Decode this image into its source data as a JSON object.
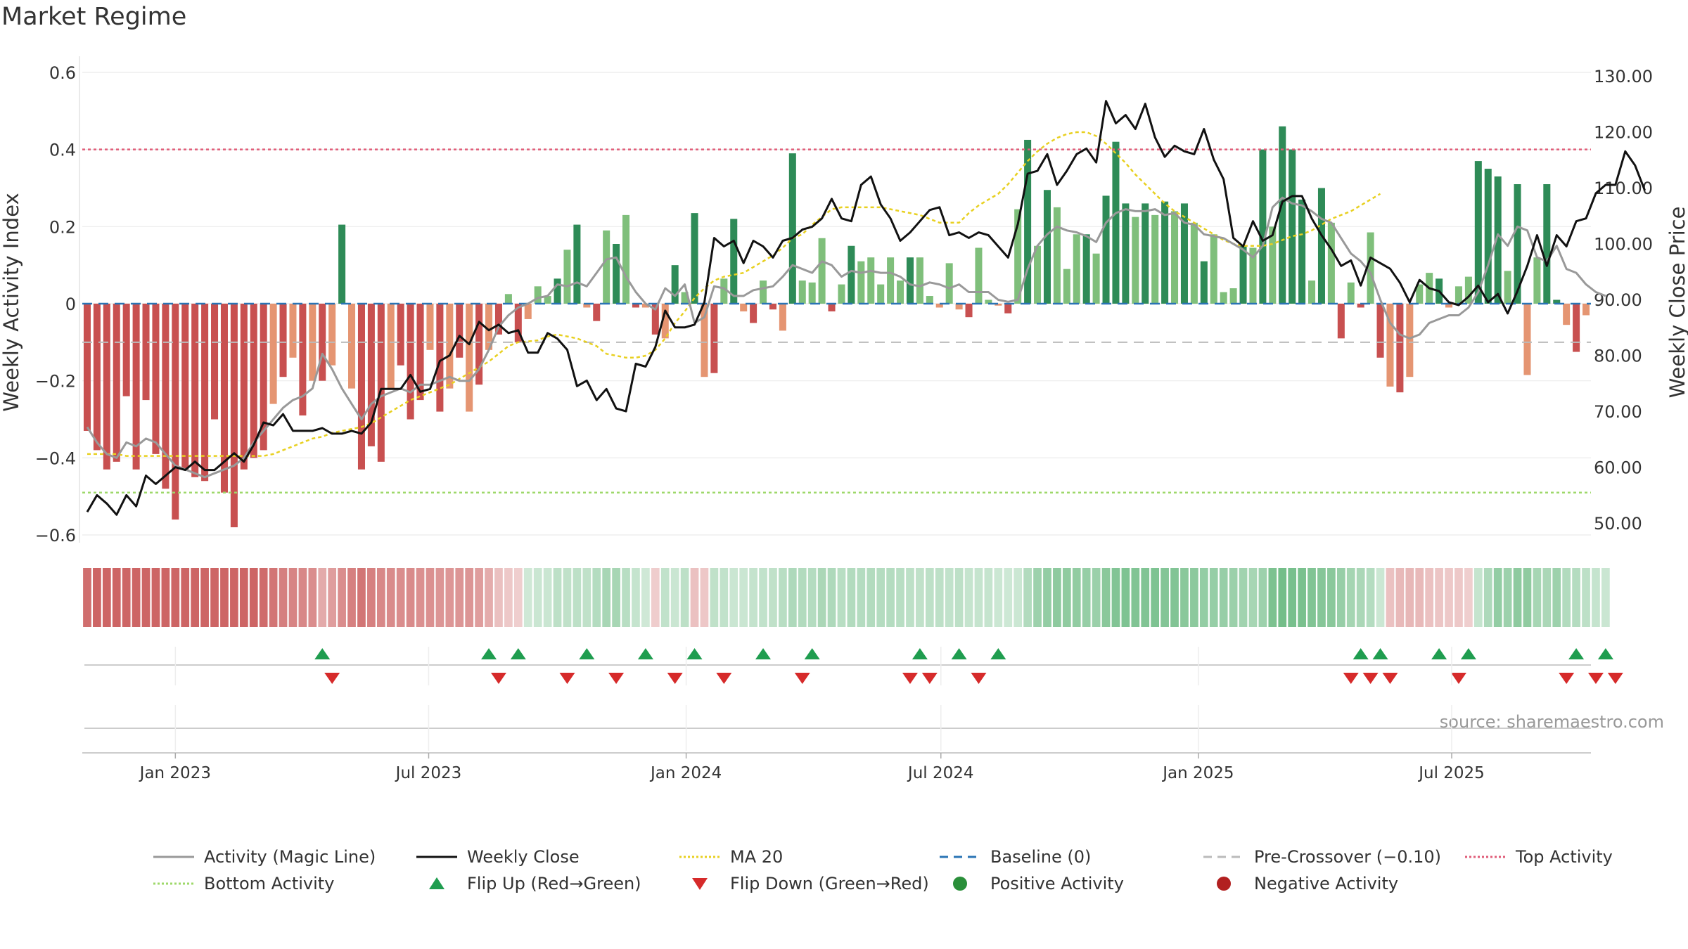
{
  "title": "Market Regime",
  "source": "source: sharemaestro.com",
  "colors": {
    "green_dark": "#2e8b57",
    "green_light": "#7fbf7b",
    "red_dark": "#c85050",
    "red_light": "#e59572",
    "activity_line": "#999999",
    "close_line": "#111111",
    "ma_line": "#e8d020",
    "baseline": "#2a74b5",
    "pre_crossover": "#bbbbbb",
    "top_activity": "#e05c78",
    "bottom_activity": "#9ed86a",
    "flip_up": "#1f9d4f",
    "flip_down": "#d62a2a"
  },
  "chart_data": {
    "type": "bar",
    "x_start": "2022-10-30",
    "week_step_days": 7,
    "left_axis": {
      "label": "Weekly Activity Index",
      "ylim": [
        -0.62,
        0.62
      ],
      "ticks": [
        -0.6,
        -0.4,
        -0.2,
        0,
        0.2,
        0.4,
        0.6
      ],
      "tick_labels": [
        "−0.6",
        "−0.4",
        "−0.2",
        "0",
        "0.2",
        "0.4",
        "0.6"
      ]
    },
    "right_axis": {
      "label": "Weekly Close Price",
      "ylim": [
        46.5,
        132.0
      ],
      "ticks": [
        50,
        60,
        70,
        80,
        90,
        100,
        110,
        120,
        130
      ],
      "tick_labels": [
        "50.00",
        "60.00",
        "70.00",
        "80.00",
        "90.00",
        "100.00",
        "110.00",
        "120.00",
        "130.00"
      ]
    },
    "x_ticks": [
      {
        "date": "2023-01-01",
        "label": "Jan 2023"
      },
      {
        "date": "2023-07-01",
        "label": "Jul 2023"
      },
      {
        "date": "2024-01-01",
        "label": "Jan 2024"
      },
      {
        "date": "2024-07-01",
        "label": "Jul 2024"
      },
      {
        "date": "2025-01-01",
        "label": "Jan 2025"
      },
      {
        "date": "2025-07-01",
        "label": "Jul 2025"
      }
    ],
    "reference_lines": {
      "baseline": 0,
      "pre_crossover": -0.1,
      "top_activity": 0.4,
      "bottom_activity": -0.49
    },
    "activity_bars": [
      -0.33,
      -0.38,
      -0.43,
      -0.41,
      -0.24,
      -0.43,
      -0.25,
      -0.39,
      -0.48,
      -0.56,
      -0.43,
      -0.45,
      -0.46,
      -0.3,
      -0.49,
      -0.58,
      -0.43,
      -0.4,
      -0.38,
      -0.26,
      -0.19,
      -0.14,
      -0.29,
      -0.2,
      -0.2,
      -0.16,
      0.205,
      -0.22,
      -0.43,
      -0.37,
      -0.41,
      -0.22,
      -0.16,
      -0.3,
      -0.25,
      -0.12,
      -0.28,
      -0.22,
      -0.14,
      -0.28,
      -0.21,
      -0.12,
      -0.08,
      0.025,
      -0.1,
      -0.04,
      0.045,
      0.02,
      0.065,
      0.14,
      0.205,
      -0.01,
      -0.045,
      0.19,
      0.155,
      0.23,
      -0.01,
      -0.01,
      -0.08,
      -0.09,
      0.1,
      0.03,
      0.235,
      -0.19,
      -0.18,
      0.065,
      0.22,
      -0.02,
      -0.05,
      0.06,
      -0.015,
      -0.07,
      0.39,
      0.06,
      0.055,
      0.17,
      -0.02,
      0.05,
      0.15,
      0.11,
      0.12,
      0.05,
      0.12,
      0.06,
      0.12,
      0.12,
      0.02,
      -0.01,
      0.105,
      -0.015,
      -0.035,
      0.145,
      0.01,
      -0.005,
      -0.025,
      0.245,
      0.425,
      0.15,
      0.295,
      0.25,
      0.09,
      0.18,
      0.18,
      0.13,
      0.28,
      0.42,
      0.26,
      0.225,
      0.26,
      0.23,
      0.265,
      0.24,
      0.26,
      0.21,
      0.11,
      0.18,
      0.03,
      0.04,
      0.15,
      0.145,
      0.4,
      0.2,
      0.46,
      0.4,
      0.27,
      0.06,
      0.3,
      0.21,
      -0.09,
      0.055,
      -0.01,
      0.185,
      -0.14,
      -0.215,
      -0.23,
      -0.19,
      0.05,
      0.08,
      0.065,
      -0.01,
      0.045,
      0.07,
      0.37,
      0.35,
      0.33,
      0.085,
      0.31,
      -0.185,
      0.12,
      0.31,
      0.01,
      -0.055,
      -0.125,
      -0.03
    ],
    "activity_line": [
      -0.32,
      -0.36,
      -0.39,
      -0.4,
      -0.36,
      -0.37,
      -0.35,
      -0.36,
      -0.39,
      -0.42,
      -0.43,
      -0.44,
      -0.45,
      -0.44,
      -0.43,
      -0.42,
      -0.4,
      -0.36,
      -0.33,
      -0.3,
      -0.27,
      -0.25,
      -0.24,
      -0.22,
      -0.13,
      -0.17,
      -0.22,
      -0.26,
      -0.3,
      -0.26,
      -0.24,
      -0.23,
      -0.22,
      -0.23,
      -0.21,
      -0.21,
      -0.2,
      -0.19,
      -0.2,
      -0.2,
      -0.17,
      -0.12,
      -0.06,
      -0.03,
      -0.01,
      -0.0,
      0.015,
      0.02,
      0.05,
      0.045,
      0.055,
      0.045,
      0.08,
      0.115,
      0.12,
      0.07,
      0.03,
      0.0,
      -0.015,
      0.04,
      0.02,
      0.05,
      -0.05,
      -0.035,
      0.045,
      0.04,
      0.02,
      0.02,
      0.035,
      0.04,
      0.045,
      0.07,
      0.1,
      0.09,
      0.08,
      0.11,
      0.1,
      0.07,
      0.085,
      0.08,
      0.085,
      0.08,
      0.08,
      0.07,
      0.05,
      0.045,
      0.055,
      0.05,
      0.04,
      0.05,
      0.03,
      0.03,
      0.03,
      0.01,
      0.005,
      0.01,
      0.09,
      0.15,
      0.18,
      0.2,
      0.19,
      0.185,
      0.175,
      0.16,
      0.21,
      0.235,
      0.245,
      0.24,
      0.24,
      0.245,
      0.23,
      0.235,
      0.21,
      0.205,
      0.18,
      0.175,
      0.17,
      0.155,
      0.14,
      0.12,
      0.15,
      0.25,
      0.275,
      0.26,
      0.255,
      0.24,
      0.22,
      0.21,
      0.17,
      0.13,
      0.11,
      0.08,
      0.01,
      -0.05,
      -0.08,
      -0.09,
      -0.08,
      -0.05,
      -0.04,
      -0.03,
      -0.03,
      -0.01,
      0.03,
      0.1,
      0.18,
      0.15,
      0.2,
      0.19,
      0.12,
      0.11,
      0.15,
      0.09,
      0.08,
      0.05,
      0.03,
      0.02
    ],
    "weekly_close": [
      52.0,
      55.0,
      53.5,
      51.5,
      55.0,
      53.0,
      58.5,
      57.0,
      58.5,
      60.0,
      59.5,
      61.0,
      59.5,
      59.5,
      61.0,
      62.5,
      61.0,
      64.0,
      68.0,
      67.5,
      69.5,
      66.5,
      66.5,
      66.5,
      67.0,
      66.0,
      66.0,
      66.5,
      66.0,
      68.0,
      74.0,
      74.0,
      74.0,
      76.5,
      73.5,
      74.0,
      79.0,
      80.0,
      83.5,
      82.0,
      86.0,
      84.5,
      85.5,
      84.0,
      84.5,
      80.5,
      80.5,
      84.0,
      83.0,
      81.0,
      74.5,
      75.5,
      72.0,
      74.0,
      70.5,
      70.0,
      78.5,
      78.0,
      81.5,
      88.0,
      85.0,
      85.0,
      85.5,
      89.5,
      101.0,
      99.5,
      100.5,
      96.5,
      100.5,
      99.5,
      97.5,
      100.5,
      101.0,
      102.5,
      103.0,
      104.5,
      108.0,
      104.5,
      104.0,
      110.5,
      112.0,
      107.0,
      104.5,
      100.5,
      102.0,
      104.0,
      106.0,
      106.5,
      101.5,
      102.0,
      101.0,
      102.0,
      101.5,
      99.5,
      97.5,
      103.5,
      112.5,
      113.0,
      116.0,
      110.5,
      113.0,
      116.0,
      117.0,
      114.5,
      125.5,
      121.5,
      123.0,
      120.5,
      125.0,
      119.0,
      115.5,
      117.5,
      116.5,
      116.0,
      120.5,
      115.0,
      111.5,
      101.0,
      99.5,
      104.0,
      100.5,
      101.5,
      107.5,
      108.5,
      108.5,
      104.5,
      101.5,
      99.0,
      96.0,
      97.0,
      92.5,
      97.5,
      96.5,
      95.5,
      93.0,
      89.5,
      93.5,
      92.0,
      91.5,
      89.5,
      89.0,
      90.5,
      92.5,
      89.5,
      91.0,
      87.5,
      91.5,
      96.0,
      101.5,
      96.0,
      101.5,
      99.5,
      104.0,
      104.5,
      109.0,
      110.5,
      110.5,
      116.5,
      114.0,
      109.5
    ],
    "ma20": [
      -0.39,
      -0.39,
      -0.39,
      -0.39,
      -0.395,
      -0.395,
      -0.395,
      -0.395,
      -0.395,
      -0.395,
      -0.395,
      -0.395,
      -0.395,
      -0.395,
      -0.395,
      -0.395,
      -0.395,
      -0.395,
      -0.395,
      -0.39,
      -0.38,
      -0.37,
      -0.36,
      -0.35,
      -0.345,
      -0.335,
      -0.33,
      -0.325,
      -0.32,
      -0.31,
      -0.295,
      -0.28,
      -0.265,
      -0.25,
      -0.24,
      -0.23,
      -0.22,
      -0.21,
      -0.195,
      -0.18,
      -0.165,
      -0.15,
      -0.13,
      -0.11,
      -0.1,
      -0.098,
      -0.095,
      -0.085,
      -0.08,
      -0.085,
      -0.09,
      -0.1,
      -0.11,
      -0.13,
      -0.135,
      -0.14,
      -0.14,
      -0.135,
      -0.12,
      -0.09,
      -0.05,
      -0.02,
      0.015,
      0.04,
      0.06,
      0.07,
      0.075,
      0.08,
      0.095,
      0.11,
      0.125,
      0.145,
      0.17,
      0.18,
      0.205,
      0.225,
      0.245,
      0.25,
      0.25,
      0.25,
      0.25,
      0.25,
      0.245,
      0.24,
      0.235,
      0.23,
      0.22,
      0.21,
      0.21,
      0.21,
      0.235,
      0.255,
      0.27,
      0.285,
      0.31,
      0.34,
      0.37,
      0.395,
      0.415,
      0.43,
      0.44,
      0.445,
      0.445,
      0.435,
      0.415,
      0.39,
      0.365,
      0.335,
      0.31,
      0.285,
      0.26,
      0.24,
      0.225,
      0.21,
      0.195,
      0.18,
      0.165,
      0.155,
      0.15,
      0.15,
      0.15,
      0.155,
      0.165,
      0.175,
      0.18,
      0.19,
      0.205,
      0.22,
      0.23,
      0.24,
      0.255,
      0.27,
      0.285
    ],
    "flip_up_weeks": [
      24,
      41,
      44,
      51,
      57,
      62,
      69,
      74,
      85,
      89,
      93,
      130,
      132,
      138,
      141,
      152,
      155
    ],
    "flip_down_weeks": [
      25,
      42,
      49,
      54,
      60,
      65,
      73,
      84,
      86,
      91,
      129,
      131,
      133,
      140,
      151,
      154,
      156
    ],
    "legend": [
      {
        "label": "Activity (Magic Line)",
        "kind": "line",
        "color": "#999999",
        "dash": ""
      },
      {
        "label": "Weekly Close",
        "kind": "line",
        "color": "#111111",
        "dash": ""
      },
      {
        "label": "MA 20",
        "kind": "line",
        "color": "#e8d020",
        "dash": "3,3"
      },
      {
        "label": "Baseline (0)",
        "kind": "line",
        "color": "#2a74b5",
        "dash": "12,8"
      },
      {
        "label": "Pre-Crossover (−0.10)",
        "kind": "line",
        "color": "#bbbbbb",
        "dash": "12,8"
      },
      {
        "label": "Top Activity",
        "kind": "line",
        "color": "#e05c78",
        "dash": "3,3"
      },
      {
        "label": "Bottom Activity",
        "kind": "line",
        "color": "#9ed86a",
        "dash": "3,3"
      },
      {
        "label": "Flip Up (Red→Green)",
        "kind": "tri-up",
        "color": "#1f9d4f",
        "dash": ""
      },
      {
        "label": "Flip Down (Green→Red)",
        "kind": "tri-down",
        "color": "#d62a2a",
        "dash": ""
      },
      {
        "label": "Positive Activity",
        "kind": "dot",
        "color": "#2a8f3a",
        "dash": ""
      },
      {
        "label": "Negative Activity",
        "kind": "dot",
        "color": "#b22020",
        "dash": ""
      }
    ]
  }
}
